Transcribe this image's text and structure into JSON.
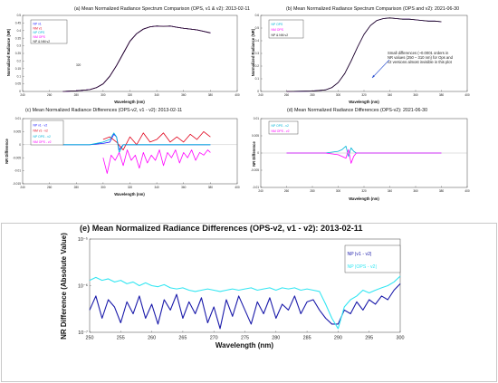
{
  "chart_data": [
    {
      "panel": "a",
      "type": "line",
      "title": "(a) Mean Normalized Radiance Spectrum Comparison (OPS, v1 & v2): 2013-02-11",
      "xlabel": "Wavelength (nm)",
      "ylabel": "Normalized Radiance (NR)",
      "xlim": [
        240,
        400
      ],
      "ylim": [
        0,
        0.5
      ],
      "xticks": [
        "240",
        "260",
        "280",
        "300",
        "320",
        "340",
        "360",
        "380",
        "400"
      ],
      "yticks": [
        "0",
        "0.05",
        "0.1",
        "0.15",
        "0.2",
        "0.25",
        "0.3",
        "0.35",
        "0.4",
        "0.45",
        "0.5"
      ],
      "annotation": "320",
      "legend_position": "top-left",
      "series": [
        {
          "name": "NP v1",
          "color": "#1a1aff",
          "x": [
            270,
            280,
            290,
            295,
            300,
            305,
            310,
            315,
            320,
            325,
            330,
            335,
            340,
            345,
            350,
            355,
            360,
            365,
            370,
            375,
            380
          ],
          "y": [
            0.0,
            0.004,
            0.012,
            0.025,
            0.05,
            0.1,
            0.17,
            0.25,
            0.33,
            0.38,
            0.41,
            0.425,
            0.43,
            0.428,
            0.43,
            0.422,
            0.415,
            0.41,
            0.405,
            0.395,
            0.385
          ]
        },
        {
          "name": "NM v1",
          "color": "#e0001a",
          "x": [
            270,
            280,
            290,
            295,
            300,
            305,
            310,
            315,
            320,
            325,
            330,
            335,
            340,
            345,
            350,
            355,
            360,
            365,
            370,
            375,
            380
          ],
          "y": [
            0.0,
            0.004,
            0.012,
            0.025,
            0.05,
            0.1,
            0.17,
            0.25,
            0.33,
            0.38,
            0.41,
            0.425,
            0.43,
            0.428,
            0.43,
            0.422,
            0.415,
            0.41,
            0.405,
            0.395,
            0.385
          ]
        },
        {
          "name": "NP OPS",
          "color": "#00b4d8",
          "x": [
            270,
            280,
            290,
            295,
            300,
            305,
            310,
            315,
            320,
            325,
            330,
            335,
            340,
            345,
            350,
            355,
            360,
            365,
            370,
            375,
            380
          ],
          "y": [
            0.0,
            0.004,
            0.012,
            0.025,
            0.05,
            0.1,
            0.17,
            0.25,
            0.33,
            0.38,
            0.41,
            0.425,
            0.43,
            0.428,
            0.43,
            0.422,
            0.415,
            0.41,
            0.405,
            0.395,
            0.385
          ]
        },
        {
          "name": "NM OPS",
          "color": "#ff00ff",
          "x": [
            270,
            280,
            290,
            295,
            300,
            305,
            310,
            315,
            320,
            325,
            330,
            335,
            340,
            345,
            350,
            355,
            360,
            365,
            370,
            375,
            380
          ],
          "y": [
            0.0,
            0.004,
            0.012,
            0.025,
            0.05,
            0.1,
            0.17,
            0.25,
            0.33,
            0.38,
            0.41,
            0.425,
            0.43,
            0.428,
            0.43,
            0.422,
            0.415,
            0.41,
            0.405,
            0.395,
            0.385
          ]
        },
        {
          "name": "NP & NM v2",
          "color": "#111111",
          "x": [
            270,
            280,
            290,
            295,
            300,
            305,
            310,
            315,
            320,
            325,
            330,
            335,
            340,
            345,
            350,
            355,
            360,
            365,
            370,
            375,
            380
          ],
          "y": [
            0.0,
            0.004,
            0.012,
            0.025,
            0.05,
            0.1,
            0.17,
            0.25,
            0.33,
            0.38,
            0.41,
            0.425,
            0.43,
            0.428,
            0.43,
            0.422,
            0.415,
            0.41,
            0.405,
            0.395,
            0.385
          ]
        }
      ]
    },
    {
      "panel": "b",
      "type": "line",
      "title": "(b) Mean Normalized Radiance Spectrum Comparison (OPS and v2): 2021-06-30",
      "xlabel": "Wavelength (nm)",
      "ylabel": "Normalized Radiance (NR)",
      "xlim": [
        240,
        400
      ],
      "ylim": [
        0,
        0.6
      ],
      "xticks": [
        "240",
        "260",
        "280",
        "300",
        "320",
        "340",
        "360",
        "380",
        "400"
      ],
      "yticks": [
        "0",
        "0.1",
        "0.2",
        "0.3",
        "0.4",
        "0.5",
        "0.6"
      ],
      "legend_position": "top-left",
      "annotation": "Small differences (~0.0001 orders in NR values (250 – 310 nm) for Ops and v2 versions almost invisible in this plot",
      "series": [
        {
          "name": "NP OPS",
          "color": "#00b4d8",
          "x": [
            260,
            280,
            290,
            295,
            300,
            305,
            310,
            315,
            320,
            325,
            330,
            335,
            340,
            345,
            350,
            355,
            360,
            365,
            370,
            375,
            380
          ],
          "y": [
            0.0,
            0.003,
            0.012,
            0.03,
            0.07,
            0.14,
            0.24,
            0.35,
            0.45,
            0.52,
            0.56,
            0.575,
            0.58,
            0.575,
            0.57,
            0.57,
            0.565,
            0.56,
            0.555,
            0.555,
            0.55
          ]
        },
        {
          "name": "NM OPS",
          "color": "#ff00ff",
          "x": [
            260,
            280,
            290,
            295,
            300,
            305,
            310,
            315,
            320,
            325,
            330,
            335,
            340,
            345,
            350,
            355,
            360,
            365,
            370,
            375,
            380
          ],
          "y": [
            0.0,
            0.003,
            0.012,
            0.03,
            0.07,
            0.14,
            0.24,
            0.35,
            0.45,
            0.52,
            0.56,
            0.575,
            0.58,
            0.575,
            0.57,
            0.57,
            0.565,
            0.56,
            0.555,
            0.555,
            0.55
          ]
        },
        {
          "name": "NP & NM v2",
          "color": "#111111",
          "x": [
            260,
            280,
            290,
            295,
            300,
            305,
            310,
            315,
            320,
            325,
            330,
            335,
            340,
            345,
            350,
            355,
            360,
            365,
            370,
            375,
            380
          ],
          "y": [
            0.0,
            0.003,
            0.012,
            0.03,
            0.07,
            0.14,
            0.24,
            0.35,
            0.45,
            0.52,
            0.56,
            0.575,
            0.58,
            0.575,
            0.57,
            0.57,
            0.565,
            0.56,
            0.555,
            0.555,
            0.55
          ]
        }
      ]
    },
    {
      "panel": "c",
      "type": "line",
      "title": "(c) Mean Normalized Radiance Differences (OPS-v2, v1 - v2): 2013-02-11",
      "xlabel": "Wavelength (nm)",
      "ylabel": "NR Difference",
      "xlim": [
        240,
        400
      ],
      "ylim": [
        -0.015,
        0.01
      ],
      "xticks": [
        "240",
        "260",
        "280",
        "300",
        "320",
        "340",
        "360",
        "380",
        "400"
      ],
      "yticks": [
        "-0.015",
        "-0.01",
        "-0.005",
        "0",
        "0.005",
        "0.01"
      ],
      "legend_position": "top-left",
      "series": [
        {
          "name": "NP v1 - v2",
          "color": "#1a1aff",
          "x": [
            270,
            290,
            300,
            305,
            308,
            310,
            312,
            315,
            330,
            350,
            380
          ],
          "y": [
            0,
            0,
            0.0005,
            0.001,
            0.004,
            0.003,
            -0.002,
            0,
            0,
            0,
            0
          ]
        },
        {
          "name": "NM v1 - v2",
          "color": "#e0001a",
          "x": [
            300,
            305,
            310,
            315,
            320,
            325,
            330,
            335,
            340,
            345,
            350,
            355,
            360,
            365,
            370,
            375,
            380
          ],
          "y": [
            0.002,
            0.003,
            0.001,
            -0.002,
            0.003,
            0,
            0.0045,
            0.001,
            0.002,
            0.0045,
            0.001,
            0.003,
            0.001,
            0.004,
            0.002,
            0.005,
            0.003
          ]
        },
        {
          "name": "NP OPS - v2",
          "color": "#00b4d8",
          "x": [
            270,
            290,
            300,
            305,
            308,
            310,
            312,
            315,
            330,
            350,
            380
          ],
          "y": [
            0,
            0,
            0.001,
            0.002,
            0.0045,
            0.003,
            -0.003,
            0,
            0,
            0,
            0
          ]
        },
        {
          "name": "NM OPS - v2",
          "color": "#ff00ff",
          "x": [
            300,
            303,
            306,
            309,
            312,
            315,
            318,
            321,
            324,
            327,
            330,
            333,
            336,
            339,
            342,
            345,
            348,
            351,
            354,
            357,
            360,
            363,
            366,
            369,
            372,
            375,
            378,
            380
          ],
          "y": [
            -0.005,
            -0.011,
            -0.004,
            -0.006,
            -0.003,
            -0.008,
            -0.002,
            -0.006,
            -0.004,
            -0.009,
            -0.003,
            -0.007,
            -0.004,
            -0.006,
            -0.002,
            -0.008,
            -0.003,
            -0.005,
            -0.002,
            -0.007,
            -0.003,
            -0.005,
            -0.002,
            -0.006,
            -0.003,
            -0.004,
            -0.002,
            -0.003
          ]
        }
      ]
    },
    {
      "panel": "d",
      "type": "line",
      "title": "(d) Mean Normalized Radiance Differences (OPS-v2): 2021-06-30",
      "xlabel": "Wavelength (nm)",
      "ylabel": "NR Difference",
      "xlim": [
        240,
        400
      ],
      "ylim": [
        -0.01,
        0.01
      ],
      "xticks": [
        "240",
        "260",
        "280",
        "300",
        "320",
        "340",
        "360",
        "380",
        "400"
      ],
      "yticks": [
        "-0.01",
        "-0.005",
        "0",
        "0.005",
        "0.01"
      ],
      "legend_position": "top-left",
      "series": [
        {
          "name": "NP OPS - v2",
          "color": "#00b4d8",
          "x": [
            260,
            290,
            300,
            303,
            306,
            308,
            310,
            312,
            314,
            320,
            340,
            380
          ],
          "y": [
            0,
            0,
            0.0005,
            0.001,
            0.002,
            -0.001,
            0.0015,
            0.0005,
            0,
            0,
            0,
            0
          ]
        },
        {
          "name": "NM OPS - v2",
          "color": "#ff00ff",
          "x": [
            260,
            290,
            300,
            303,
            306,
            308,
            310,
            312,
            314,
            320,
            340,
            380
          ],
          "y": [
            0,
            0,
            -0.0005,
            -0.001,
            -0.0015,
            0.001,
            -0.003,
            -0.001,
            0,
            0,
            0,
            0
          ]
        }
      ]
    },
    {
      "panel": "e",
      "type": "line",
      "title": "(e) Mean Normalized Radiance Differences (OPS-v2, v1 - v2): 2013-02-11",
      "xlabel": "Wavelength (nm)",
      "ylabel": "NR Difference (Absolute Value)",
      "xlim": [
        250,
        300
      ],
      "ylim_log10": [
        -7,
        -5
      ],
      "y_scale": "log",
      "xticks": [
        "250",
        "255",
        "260",
        "265",
        "270",
        "275",
        "280",
        "285",
        "290",
        "295",
        "300"
      ],
      "yticks": [
        "10⁻⁷",
        "10⁻⁶",
        "10⁻⁵"
      ],
      "legend_position": "top-right",
      "series": [
        {
          "name": "NP |v1 - v2|",
          "color": "#1a1aaa",
          "x": [
            250,
            251,
            252,
            253,
            254,
            255,
            256,
            257,
            258,
            259,
            260,
            261,
            262,
            263,
            264,
            265,
            266,
            267,
            268,
            269,
            270,
            271,
            272,
            273,
            274,
            275,
            276,
            277,
            278,
            279,
            280,
            281,
            282,
            283,
            284,
            285,
            286,
            287,
            288,
            289,
            290,
            291,
            292,
            293,
            294,
            295,
            296,
            297,
            298,
            299,
            300
          ],
          "y": [
            3e-07,
            6e-07,
            2e-07,
            5e-07,
            3.5e-07,
            1.6e-07,
            4.5e-07,
            2.5e-07,
            6e-07,
            2e-07,
            4e-07,
            1.5e-07,
            5e-07,
            3e-07,
            6.5e-07,
            2e-07,
            4.5e-07,
            2.5e-07,
            5.5e-07,
            1.6e-07,
            3.5e-07,
            1.2e-07,
            5e-07,
            2.2e-07,
            6e-07,
            3e-07,
            1.5e-07,
            4.5e-07,
            2.5e-07,
            5.5e-07,
            2e-07,
            4e-07,
            3e-07,
            6e-07,
            2.5e-07,
            4.5e-07,
            5e-07,
            3e-07,
            2e-07,
            1.5e-07,
            1.5e-07,
            3e-07,
            2.5e-07,
            4.5e-07,
            3e-07,
            5e-07,
            4e-07,
            6e-07,
            5e-07,
            8e-07,
            1.1e-06
          ]
        },
        {
          "name": "NP |OPS - v2|",
          "color": "#33e6f2",
          "x": [
            250,
            251,
            252,
            253,
            254,
            255,
            256,
            257,
            258,
            259,
            260,
            261,
            262,
            263,
            264,
            265,
            266,
            267,
            268,
            269,
            270,
            271,
            272,
            273,
            274,
            275,
            276,
            277,
            278,
            279,
            280,
            281,
            282,
            283,
            284,
            285,
            286,
            287,
            288,
            289,
            290,
            291,
            292,
            293,
            294,
            295,
            296,
            297,
            298,
            299,
            300
          ],
          "y": [
            1.3e-06,
            1.5e-06,
            1.3e-06,
            1.4e-06,
            1.2e-06,
            1.3e-06,
            1.1e-06,
            1.2e-06,
            1e-06,
            1.15e-06,
            1e-06,
            9.5e-07,
            1.05e-06,
            9e-07,
            8.5e-07,
            9e-07,
            8e-07,
            7.5e-07,
            8e-07,
            8.5e-07,
            8e-07,
            7.5e-07,
            8e-07,
            8.5e-07,
            8e-07,
            8.5e-07,
            9e-07,
            8e-07,
            8.5e-07,
            9e-07,
            8e-07,
            9e-07,
            8.5e-07,
            9e-07,
            8e-07,
            8.5e-07,
            8e-07,
            7.5e-07,
            4e-07,
            2e-07,
            1.2e-07,
            3.5e-07,
            5e-07,
            6e-07,
            8e-07,
            7e-07,
            8e-07,
            9e-07,
            1e-06,
            1.2e-06,
            1.6e-06
          ]
        }
      ]
    }
  ]
}
